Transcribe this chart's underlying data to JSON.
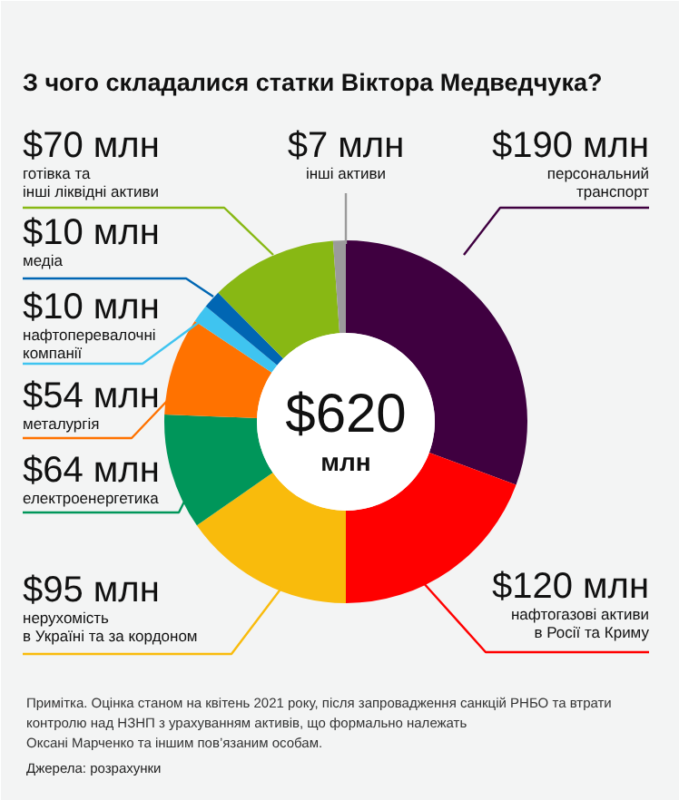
{
  "chart_data": {
    "type": "donut",
    "title": "З чого складалися статки Віктора Медведчука?",
    "categories": [
      "персональний\nтранспорт",
      "нафтогазові активи\nв Росії та Криму",
      "нерухомість\nв Україні та за кордоном",
      "електроенергетика",
      "металургія",
      "нафтоперевалочні\nкомпанії",
      "медіа",
      "готівка та\nінші ліквідні активи",
      "інші активи"
    ],
    "values": [
      190,
      120,
      95,
      64,
      54,
      10,
      10,
      70,
      7
    ],
    "value_labels": [
      "$190 млн",
      "$120 млн",
      "$95 млн",
      "$64 млн",
      "$54 млн",
      "$10 млн",
      "$10 млн",
      "$70 млн",
      "$7 млн"
    ],
    "colors": [
      "#3f0040",
      "#ff0000",
      "#f9bb0c",
      "#00965a",
      "#ff7200",
      "#3fc4f0",
      "#0066b3",
      "#88b814",
      "#9b9b9b"
    ],
    "annotations": [
      "$620 млн",
      "Примітка. Оцінка станом на квітень 2021 року, після запровадження санкцій РНБО та втрати\nконтролю над НЗНП з урахуванням активів, що формально належать\nОксані Марченко та іншим пов’язаним особам.",
      "Джерела: розрахунки"
    ]
  }
}
